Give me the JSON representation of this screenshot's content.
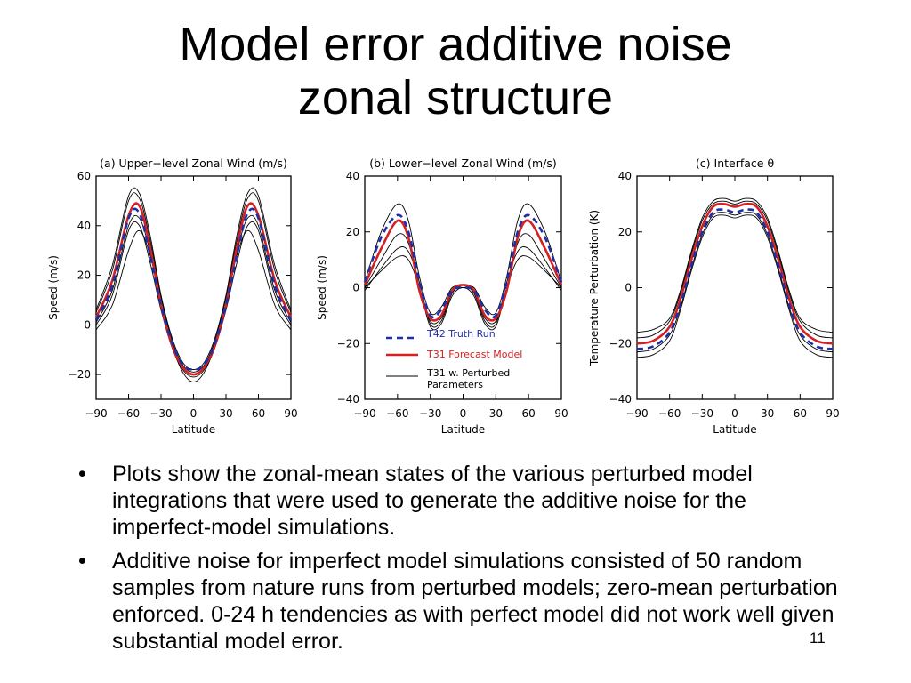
{
  "slide": {
    "title_line1": "Model error additive noise",
    "title_line2": "zonal structure",
    "bullets": [
      "Plots show the zonal-mean states of the various perturbed model integrations that were used to generate the additive noise for the imperfect-model simulations.",
      "Additive noise for imperfect model simulations consisted of 50 random samples from nature runs from perturbed models; zero-mean perturbation enforced. 0-24 h tendencies as with perfect model did not work well given substantial model error."
    ],
    "bullet_symbol": "•",
    "page_number": "11"
  },
  "colors": {
    "truth": "#1f2fa8",
    "forecast": "#d42020",
    "perturbed": "#000000"
  },
  "legend": {
    "truth_label": "T42 Truth Run",
    "forecast_label": "T31 Forecast Model",
    "perturbed_label_line1": "T31 w. Perturbed",
    "perturbed_label_line2": "Parameters"
  },
  "chart_data": [
    {
      "type": "line",
      "title": "(a) Upper−level Zonal Wind (m/s)",
      "xlabel": "Latitude",
      "ylabel": "Speed (m/s)",
      "xlim": [
        -90,
        90
      ],
      "ylim": [
        -30,
        60
      ],
      "xticks": [
        -90,
        -60,
        -30,
        0,
        30,
        60,
        90
      ],
      "xtick_labels": [
        "−90",
        "−60",
        "−30",
        "0",
        "30",
        "60",
        "90"
      ],
      "yticks": [
        -20,
        0,
        20,
        40,
        60
      ],
      "ytick_labels": [
        "−20",
        "0",
        "20",
        "40",
        "60"
      ],
      "x": [
        -90,
        -75,
        -60,
        -50,
        -40,
        -30,
        -20,
        -10,
        0,
        10,
        20,
        30,
        40,
        50,
        60,
        75,
        90
      ],
      "series": [
        {
          "name": "T42 Truth Run",
          "style": "dashed",
          "values": [
            2,
            16,
            43,
            45,
            28,
            8,
            -7,
            -16,
            -18,
            -16,
            -7,
            8,
            28,
            45,
            43,
            16,
            2
          ]
        },
        {
          "name": "T31 Forecast Model",
          "style": "solid",
          "values": [
            3,
            18,
            44,
            48,
            31,
            8,
            -8,
            -17,
            -20,
            -17,
            -8,
            8,
            31,
            48,
            44,
            18,
            3
          ]
        },
        {
          "name": "T31 w. Perturbed Parameters",
          "style": "thin",
          "values": [
            5,
            22,
            50,
            51,
            34,
            11,
            -6,
            -16,
            -19,
            -16,
            -6,
            11,
            34,
            51,
            50,
            22,
            5
          ]
        },
        {
          "name": "T31 w. Perturbed Parameters",
          "style": "thin",
          "values": [
            6,
            24,
            52,
            53,
            36,
            12,
            -5,
            -15,
            -18,
            -15,
            -5,
            12,
            36,
            53,
            52,
            24,
            6
          ]
        },
        {
          "name": "T31 w. Perturbed Parameters",
          "style": "thin",
          "values": [
            0,
            12,
            38,
            40,
            25,
            6,
            -9,
            -18,
            -21,
            -18,
            -9,
            6,
            25,
            40,
            38,
            12,
            0
          ]
        },
        {
          "name": "T31 w. Perturbed Parameters",
          "style": "thin",
          "values": [
            -2,
            8,
            30,
            38,
            28,
            9,
            -8,
            -19,
            -23,
            -19,
            -8,
            9,
            28,
            38,
            30,
            8,
            -2
          ]
        },
        {
          "name": "T31 w. Perturbed Parameters",
          "style": "thin",
          "values": [
            1,
            14,
            40,
            43,
            29,
            7,
            -7,
            -17,
            -20,
            -17,
            -7,
            7,
            29,
            43,
            40,
            14,
            1
          ]
        }
      ]
    },
    {
      "type": "line",
      "title": "(b) Lower−level Zonal Wind (m/s)",
      "xlabel": "Latitude",
      "ylabel": "Speed (m/s)",
      "xlim": [
        -90,
        90
      ],
      "ylim": [
        -40,
        40
      ],
      "xticks": [
        -90,
        -60,
        -30,
        0,
        30,
        60,
        90
      ],
      "xtick_labels": [
        "−90",
        "−60",
        "−30",
        "0",
        "30",
        "60",
        "90"
      ],
      "yticks": [
        -40,
        -20,
        0,
        20,
        40
      ],
      "ytick_labels": [
        "−40",
        "−20",
        "0",
        "20",
        "40"
      ],
      "x": [
        -90,
        -75,
        -60,
        -50,
        -40,
        -30,
        -20,
        -10,
        0,
        10,
        20,
        30,
        40,
        50,
        60,
        75,
        90
      ],
      "series": [
        {
          "name": "T42 Truth Run",
          "style": "dashed",
          "values": [
            2,
            18,
            26,
            20,
            2,
            -10,
            -8,
            -1,
            0,
            -1,
            -8,
            -10,
            2,
            20,
            26,
            18,
            2
          ]
        },
        {
          "name": "T31 Forecast Model",
          "style": "solid",
          "values": [
            1,
            14,
            24,
            18,
            -1,
            -11,
            -10,
            -1,
            1,
            -1,
            -10,
            -11,
            -1,
            18,
            24,
            14,
            1
          ]
        },
        {
          "name": "T31 w. Perturbed Parameters",
          "style": "thin",
          "values": [
            2,
            20,
            30,
            24,
            4,
            -9,
            -7,
            0,
            0,
            0,
            -7,
            -9,
            4,
            24,
            30,
            20,
            2
          ]
        },
        {
          "name": "T31 w. Perturbed Parameters",
          "style": "thin",
          "values": [
            0,
            10,
            19,
            16,
            0,
            -12,
            -11,
            -2,
            1,
            -2,
            -11,
            -12,
            0,
            16,
            19,
            10,
            0
          ]
        },
        {
          "name": "T31 w. Perturbed Parameters",
          "style": "thin",
          "values": [
            -1,
            7,
            14,
            13,
            2,
            -13,
            -12,
            -2,
            1,
            -2,
            -12,
            -13,
            2,
            13,
            14,
            7,
            -1
          ]
        },
        {
          "name": "T31 w. Perturbed Parameters",
          "style": "thin",
          "values": [
            0,
            6,
            11,
            10,
            0,
            -14,
            -13,
            -3,
            0,
            -3,
            -13,
            -14,
            0,
            10,
            11,
            6,
            0
          ]
        }
      ]
    },
    {
      "type": "line",
      "title": "(c) Interface θ",
      "xlabel": "Latitude",
      "ylabel": "Temperature Perturbation (K)",
      "xlim": [
        -90,
        90
      ],
      "ylim": [
        -40,
        40
      ],
      "xticks": [
        -90,
        -60,
        -30,
        0,
        30,
        60,
        90
      ],
      "xtick_labels": [
        "−90",
        "−60",
        "−30",
        "0",
        "30",
        "60",
        "90"
      ],
      "yticks": [
        -40,
        -20,
        0,
        20,
        40
      ],
      "ytick_labels": [
        "−40",
        "−20",
        "0",
        "20",
        "40"
      ],
      "x": [
        -90,
        -75,
        -60,
        -50,
        -40,
        -30,
        -20,
        -10,
        0,
        10,
        20,
        30,
        40,
        50,
        60,
        75,
        90
      ],
      "series": [
        {
          "name": "T42 Truth Run",
          "style": "dashed",
          "values": [
            -22,
            -21,
            -16,
            -6,
            8,
            20,
            27,
            28,
            27,
            28,
            27,
            20,
            8,
            -6,
            -16,
            -21,
            -22
          ]
        },
        {
          "name": "T31 Forecast Model",
          "style": "solid",
          "values": [
            -20,
            -19,
            -14,
            -4,
            10,
            22,
            29,
            30,
            29,
            30,
            29,
            22,
            10,
            -4,
            -14,
            -19,
            -20
          ]
        },
        {
          "name": "T31 w. Perturbed Parameters",
          "style": "thin",
          "values": [
            -16,
            -15,
            -11,
            -1,
            13,
            25,
            31,
            32,
            31,
            32,
            31,
            25,
            13,
            -1,
            -11,
            -15,
            -16
          ]
        },
        {
          "name": "T31 w. Perturbed Parameters",
          "style": "thin",
          "values": [
            -18,
            -17,
            -12,
            -2,
            12,
            24,
            30,
            31,
            30,
            31,
            30,
            24,
            12,
            -2,
            -12,
            -17,
            -18
          ]
        },
        {
          "name": "T31 w. Perturbed Parameters",
          "style": "thin",
          "values": [
            -23,
            -22,
            -17,
            -7,
            7,
            19,
            26,
            27,
            26,
            27,
            26,
            19,
            7,
            -7,
            -17,
            -22,
            -23
          ]
        },
        {
          "name": "T31 w. Perturbed Parameters",
          "style": "thin",
          "values": [
            -25,
            -24,
            -19,
            -8,
            6,
            18,
            25,
            26,
            25,
            26,
            25,
            18,
            6,
            -8,
            -19,
            -24,
            -25
          ]
        }
      ]
    }
  ]
}
